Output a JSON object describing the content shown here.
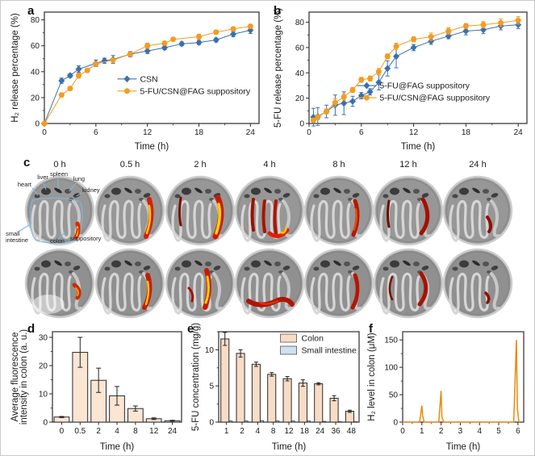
{
  "panels": {
    "a": "a",
    "b": "b",
    "c": "c",
    "d": "d",
    "e": "e",
    "f": "f"
  },
  "colors": {
    "blue_series": "#3a70ae",
    "orange_series": "#f39c1f",
    "bar_peach": "#fbe5d3",
    "bar_blue": "#cfe0ef",
    "fluorescence_red": "#cc1a00",
    "fluorescence_yellow": "#ffd400",
    "annotation_blue": "#85b4d8",
    "suppository_red": "#e02000"
  },
  "chart_data": [
    {
      "panel": "a",
      "type": "line",
      "title": "",
      "xlabel": "Time (h)",
      "ylabel": "H₂ release percentage (%)",
      "xlim": [
        0,
        25
      ],
      "ylim": [
        0,
        86
      ],
      "xticks": [
        0,
        6,
        12,
        18,
        24
      ],
      "yticks": [
        0,
        20,
        40,
        60,
        80
      ],
      "xminor": 3,
      "yminor": 10,
      "legend_position": "inside-bottom-center",
      "series": [
        {
          "name": "CSN",
          "color": "#3a70ae",
          "marker": "diamond",
          "x": [
            0,
            2,
            3,
            4,
            6,
            7,
            8,
            10,
            12,
            14,
            16,
            18,
            20,
            22,
            24
          ],
          "y": [
            0,
            33,
            37,
            42,
            46.5,
            48.5,
            49.5,
            53.5,
            56,
            58.5,
            61.5,
            62.5,
            64.5,
            69,
            72
          ],
          "err": [
            0,
            2,
            1.5,
            2.5,
            2.5,
            2,
            3,
            2,
            2,
            1.5,
            1.5,
            1.5,
            1.5,
            2,
            2.5
          ]
        },
        {
          "name": "5-FU/CSN@FAG suppository",
          "color": "#f39c1f",
          "marker": "circle",
          "x": [
            0,
            2,
            3,
            4,
            5,
            6,
            8,
            10,
            12,
            14,
            15,
            18,
            20,
            22,
            24
          ],
          "y": [
            0,
            22,
            27,
            37,
            41,
            46,
            49,
            53.5,
            60,
            62,
            65,
            67,
            70.5,
            73,
            75
          ],
          "err": [
            0,
            1.5,
            1.5,
            2,
            1.5,
            1.5,
            1.5,
            1.5,
            2,
            1.5,
            1.5,
            2,
            1.5,
            1.5,
            1.5
          ]
        }
      ]
    },
    {
      "panel": "b",
      "type": "line",
      "title": "",
      "xlabel": "Time (h)",
      "ylabel": "5-FU release percentage (%)",
      "xlim": [
        0,
        25
      ],
      "ylim": [
        0,
        88
      ],
      "xticks": [
        0,
        6,
        12,
        18,
        24
      ],
      "yticks": [
        0,
        20,
        40,
        60,
        80
      ],
      "xminor": 3,
      "yminor": 10,
      "legend_position": "inside-bottom-center",
      "series": [
        {
          "name": "5-FU@FAG suppository",
          "color": "#3a70ae",
          "marker": "diamond",
          "x": [
            0.5,
            1,
            2,
            3,
            4,
            5,
            6,
            7,
            8,
            9,
            10,
            12,
            14,
            16,
            18,
            20,
            22,
            24
          ],
          "y": [
            5,
            5.5,
            9.5,
            14.5,
            16,
            17.5,
            22,
            25,
            32.5,
            43.5,
            53,
            60,
            65,
            69,
            73,
            74,
            77,
            78
          ],
          "err": [
            7,
            7,
            5,
            8,
            9,
            4,
            2.5,
            2.5,
            6,
            6,
            9,
            2.5,
            2.5,
            2,
            3,
            3,
            3,
            3
          ]
        },
        {
          "name": "5-FU/CSN@FAG suppository",
          "color": "#f39c1f",
          "marker": "circle",
          "x": [
            0.5,
            1,
            2,
            3,
            4,
            5,
            6,
            7,
            8,
            9,
            10,
            12,
            14,
            16,
            18,
            20,
            22,
            24
          ],
          "y": [
            2.5,
            5,
            9.5,
            16.5,
            21,
            26.5,
            34.5,
            35.5,
            41,
            53,
            61,
            66.5,
            68.5,
            73,
            77,
            78,
            79.5,
            81.5
          ],
          "err": [
            1.5,
            2,
            2,
            3,
            2.5,
            2,
            2,
            2,
            2.5,
            2,
            2.5,
            2,
            3,
            2.5,
            2,
            2.5,
            3,
            3
          ]
        }
      ]
    },
    {
      "panel": "d",
      "type": "bar",
      "title": "",
      "xlabel": "Time (h)",
      "ylabel_lines": [
        "Average fluorescence",
        "intensity in colon (a. u.)"
      ],
      "categories": [
        "0",
        "0.5",
        "2",
        "4",
        "8",
        "12",
        "24"
      ],
      "values": [
        1.8,
        24.7,
        14.8,
        9.3,
        4.8,
        1.2,
        0.5
      ],
      "errors": [
        0.2,
        5.3,
        4.3,
        3.3,
        0.9,
        0.3,
        0.15
      ],
      "ylim": [
        0,
        32
      ],
      "yticks": [
        0,
        10,
        20,
        30
      ],
      "yminor": 5,
      "bar_color": "#fbe5d3",
      "bar_edge": "#2a2a2a"
    },
    {
      "panel": "e",
      "type": "bar",
      "title": "",
      "xlabel": "Time (h)",
      "ylabel": "5-FU concentration (mg/g)",
      "categories": [
        "1",
        "2",
        "4",
        "8",
        "12",
        "18",
        "24",
        "36",
        "48"
      ],
      "ylim": [
        0,
        12.5
      ],
      "yticks": [
        0,
        5,
        10
      ],
      "yminor": 2.5,
      "legend_position": "inside-top-right",
      "series": [
        {
          "name": "Colon",
          "color": "#f9dcc6",
          "values": [
            11.5,
            9.5,
            8.0,
            6.6,
            6.0,
            5.4,
            5.3,
            3.3,
            1.5
          ],
          "errors": [
            0.9,
            0.5,
            0.3,
            0.25,
            0.3,
            0.45,
            0.15,
            0.35,
            0.15
          ]
        },
        {
          "name": "Small intestine",
          "color": "#cfe0ef",
          "values": [
            0.15,
            0.15,
            0.2,
            0.15,
            0.15,
            0.15,
            0.1,
            0.05,
            0.05
          ],
          "errors": [
            0,
            0,
            0,
            0,
            0,
            0,
            0,
            0,
            0
          ]
        }
      ],
      "bar_edge": "#2a2a2a"
    },
    {
      "panel": "f",
      "type": "line",
      "title": "",
      "xlabel": "Time (h)",
      "ylabel": "H₂ level in colon (μM)",
      "xlim": [
        0,
        6.3
      ],
      "ylim": [
        0,
        165
      ],
      "xticks": [
        0,
        1,
        2,
        3,
        4,
        5,
        6
      ],
      "yticks": [
        0,
        50,
        100,
        150
      ],
      "xminor": 0.5,
      "yminor": 25,
      "color": "#f39c1f",
      "x": [
        0,
        0.88,
        1.0,
        1.04,
        1.12,
        1.88,
        2.0,
        2.04,
        2.14,
        5.78,
        5.92,
        5.97,
        6.05
      ],
      "y": [
        0,
        0,
        30,
        12,
        0,
        0,
        57,
        10,
        0,
        0,
        150,
        25,
        0
      ],
      "note": "three H2 release spikes at ~1 h (30 uM), ~2 h (57 uM), ~6 h (150 uM)"
    }
  ],
  "panel_c": {
    "timepoints": [
      "0 h",
      "0.5 h",
      "2 h",
      "4 h",
      "8 h",
      "12 h",
      "24 h"
    ],
    "rows": 2,
    "organ_labels": [
      "heart",
      "liver",
      "spleen",
      "lung",
      "kidney",
      "small intestine",
      "colon",
      "suppository"
    ]
  }
}
